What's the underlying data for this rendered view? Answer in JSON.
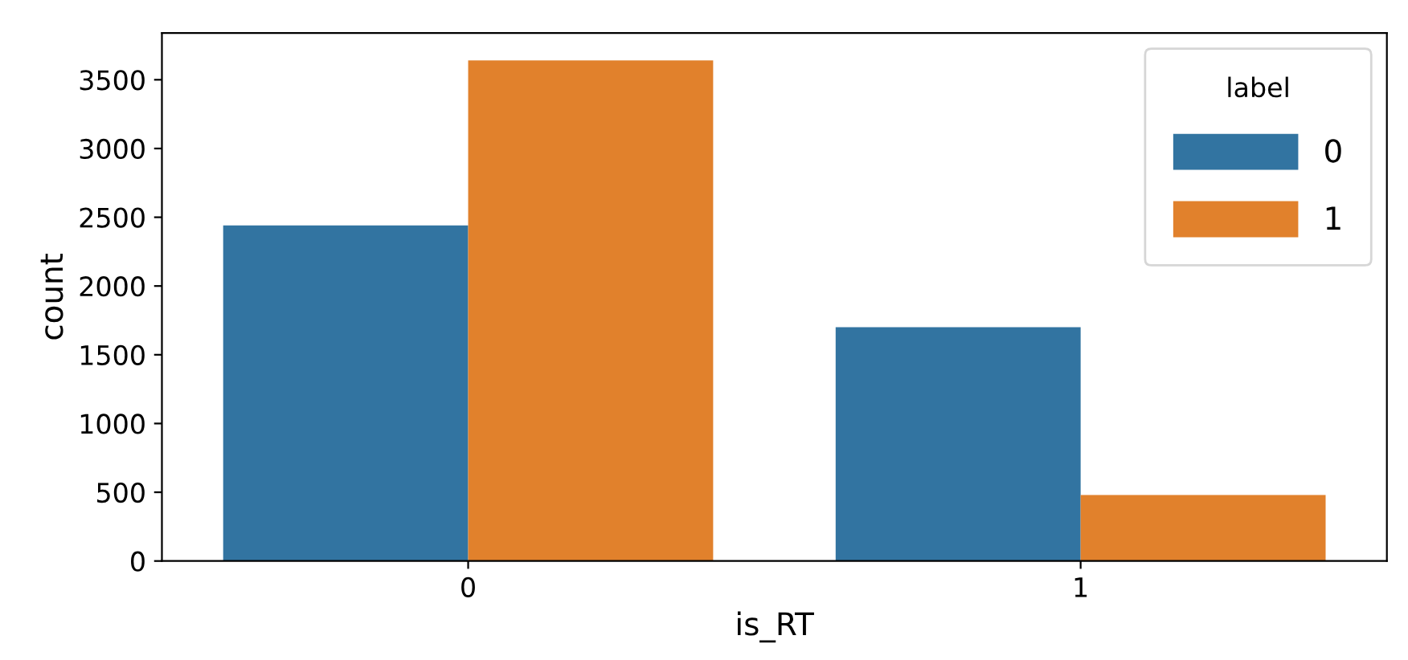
{
  "chart_data": {
    "type": "bar",
    "xlabel": "is_RT",
    "ylabel": "count",
    "legend_title": "label",
    "categories": [
      "0",
      "1"
    ],
    "series": [
      {
        "name": "0",
        "color": "#3274a1",
        "values": [
          2440,
          1700
        ]
      },
      {
        "name": "1",
        "color": "#e1812c",
        "values": [
          3640,
          480
        ]
      }
    ],
    "ylim": [
      0,
      3840
    ],
    "yticks": [
      0,
      500,
      1000,
      1500,
      2000,
      2500,
      3000,
      3500
    ],
    "grid": false,
    "legend": "top right"
  }
}
